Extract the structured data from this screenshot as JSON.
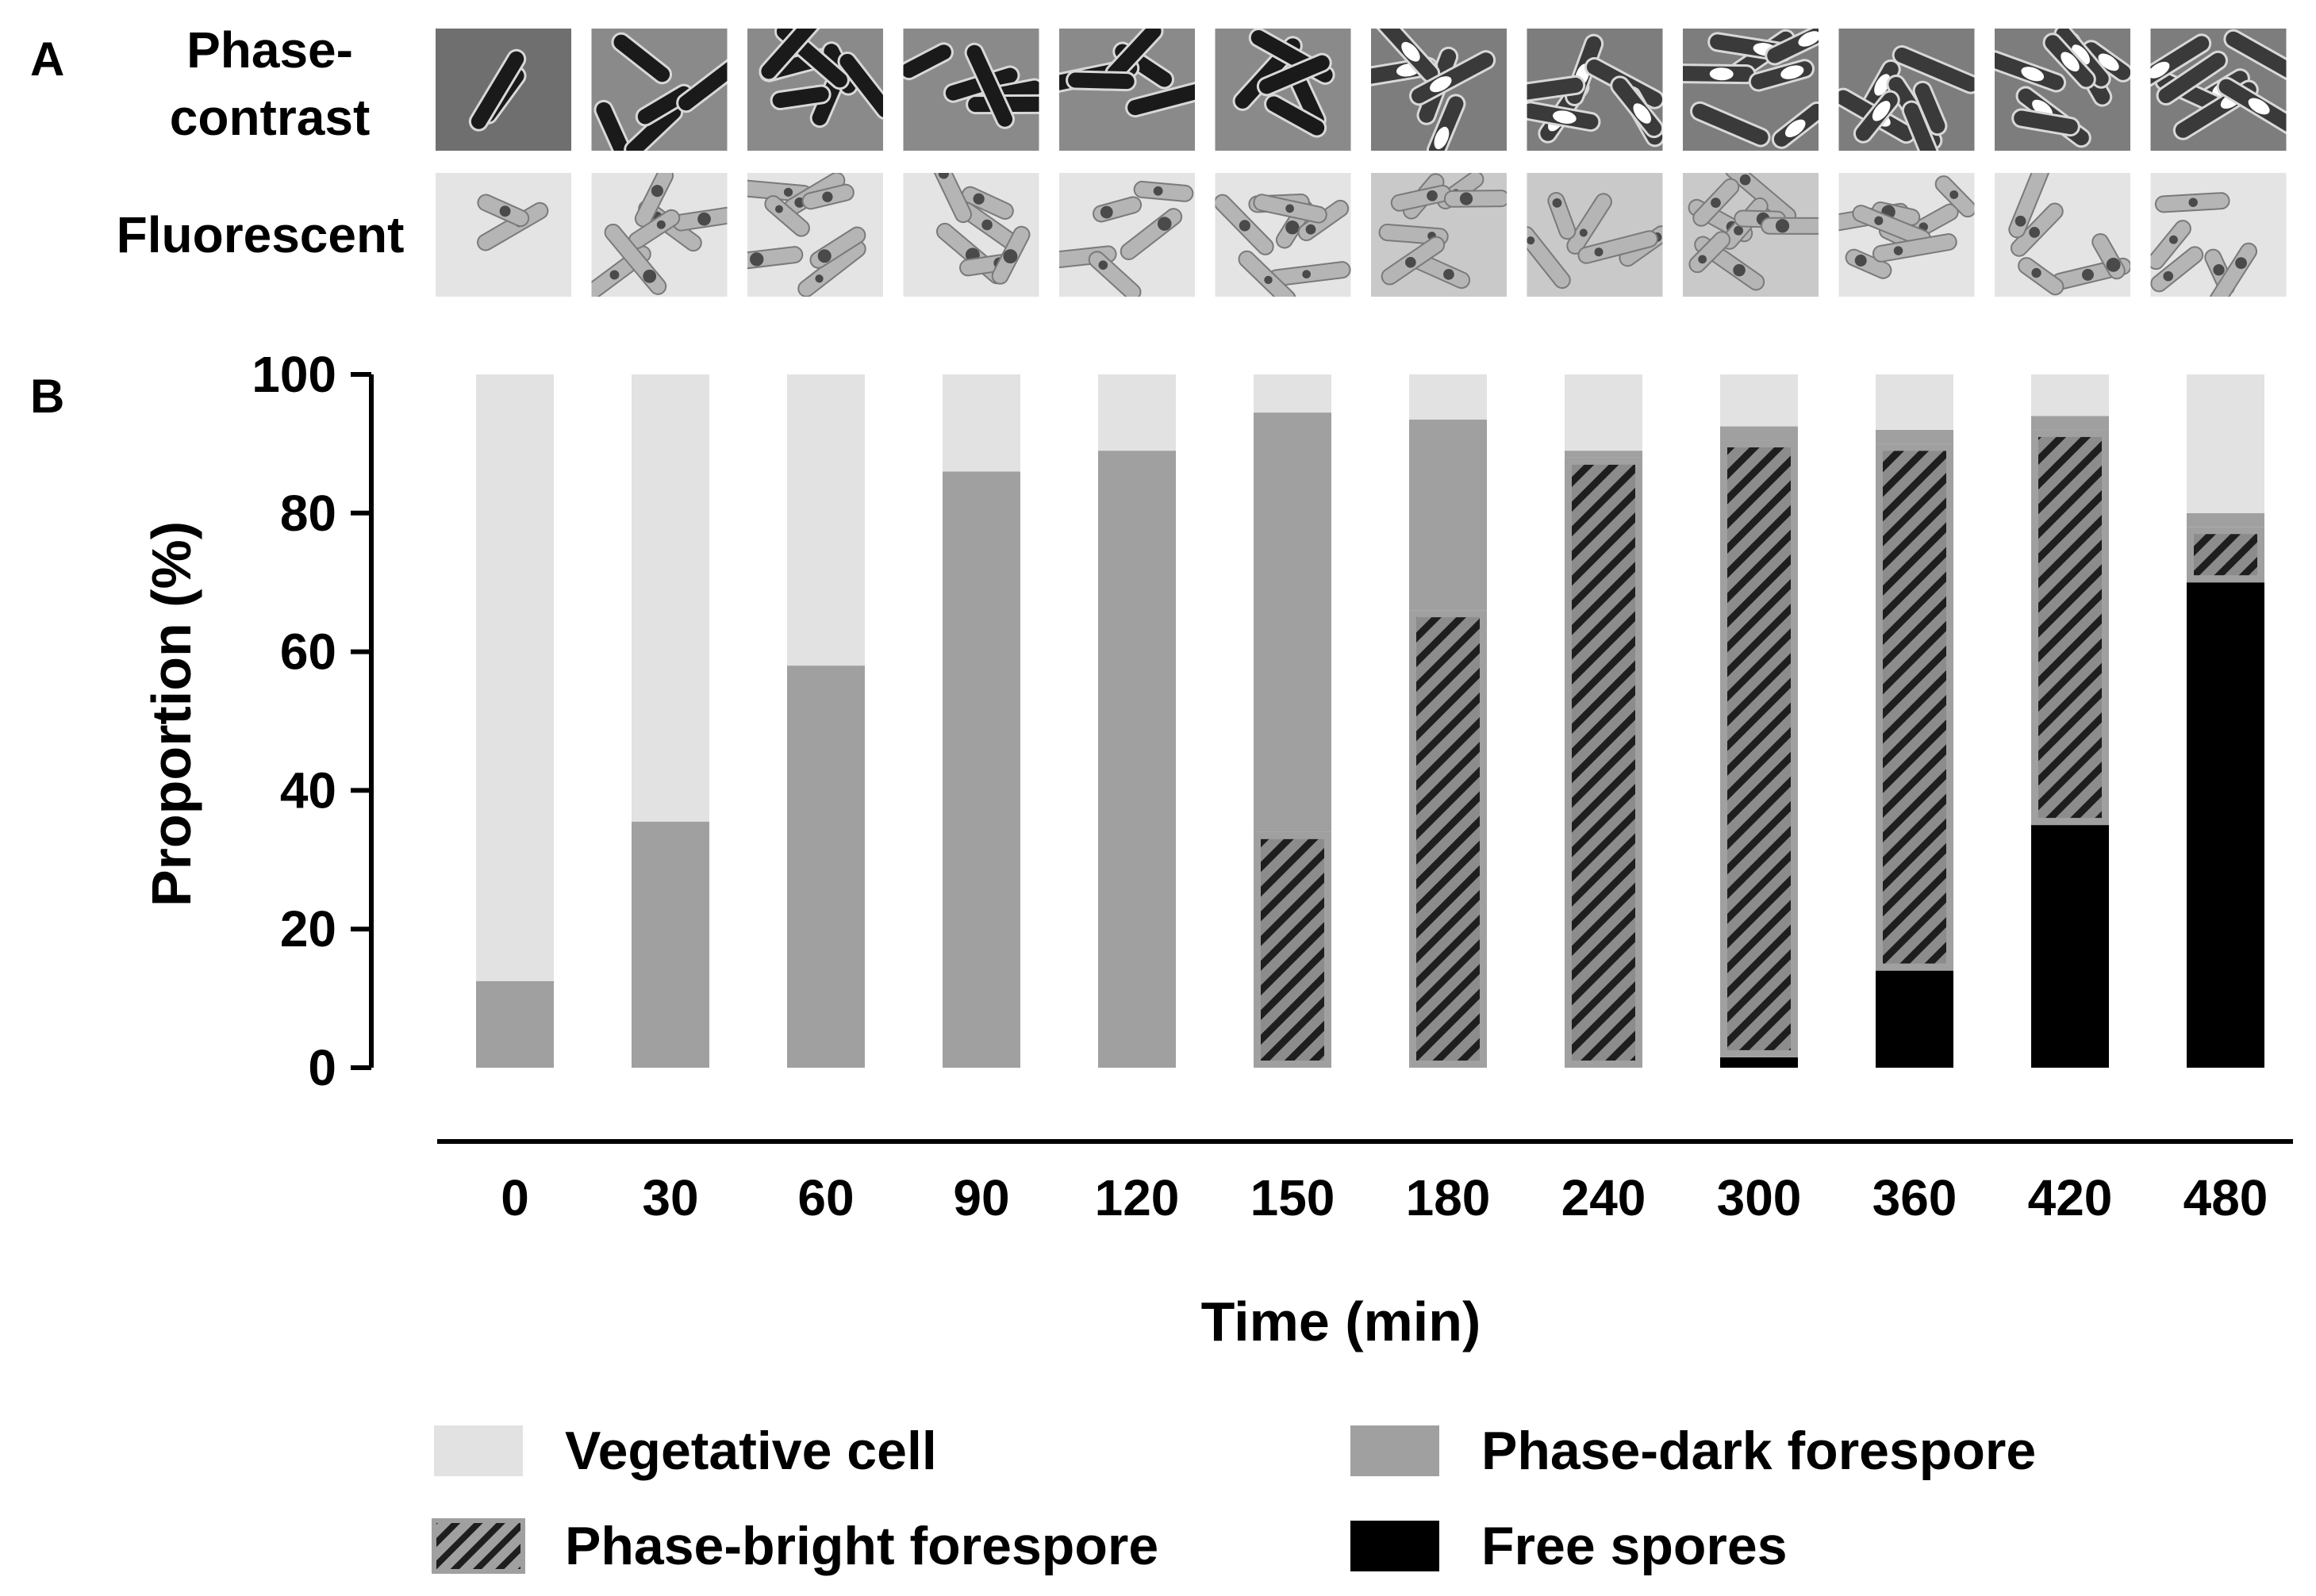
{
  "panel_a": {
    "label": "A",
    "row_labels": [
      "Phase-",
      "contrast",
      "Fluorescent"
    ],
    "tiles": [
      {
        "phase": "phase-contrast-micrograph-icon",
        "fluor": "fluorescent-micrograph-icon"
      }
    ]
  },
  "panel_b": {
    "label": "B"
  },
  "colors": {
    "vegetative": "#e2e2e2",
    "phase_dark": "#a0a0a0",
    "phase_bright_fill": "#8c8c8c",
    "phase_bright_hatch": "#1e1e1e",
    "free_spores": "#000000"
  },
  "chart_data": {
    "type": "bar",
    "stacked": true,
    "xlabel": "Time (min)",
    "ylabel": "Proportion (%)",
    "ylim": [
      0,
      100
    ],
    "yticks": [
      0,
      20,
      40,
      60,
      80,
      100
    ],
    "categories": [
      "0",
      "30",
      "60",
      "90",
      "120",
      "150",
      "180",
      "240",
      "300",
      "360",
      "420",
      "480"
    ],
    "series": [
      {
        "name": "Free spores",
        "values": [
          0,
          0,
          0,
          0,
          0,
          0,
          0,
          0,
          1.5,
          14,
          35,
          70
        ]
      },
      {
        "name": "Phase-bright forespore",
        "values": [
          0,
          0,
          0,
          0,
          0,
          34,
          66,
          88,
          89,
          76,
          57,
          8
        ]
      },
      {
        "name": "Phase-dark forespore",
        "values": [
          12.5,
          35.5,
          58,
          86,
          89,
          60.5,
          27.5,
          1,
          2,
          2,
          2,
          2
        ]
      },
      {
        "name": "Vegetative cell",
        "values": [
          87.5,
          64.5,
          42,
          14,
          11,
          5.5,
          6.5,
          11,
          7.5,
          8,
          6,
          20
        ]
      }
    ],
    "legend": [
      "Vegetative cell",
      "Phase-dark forespore",
      "Phase-bright forespore",
      "Free spores"
    ],
    "legend_placement": "bottom"
  }
}
